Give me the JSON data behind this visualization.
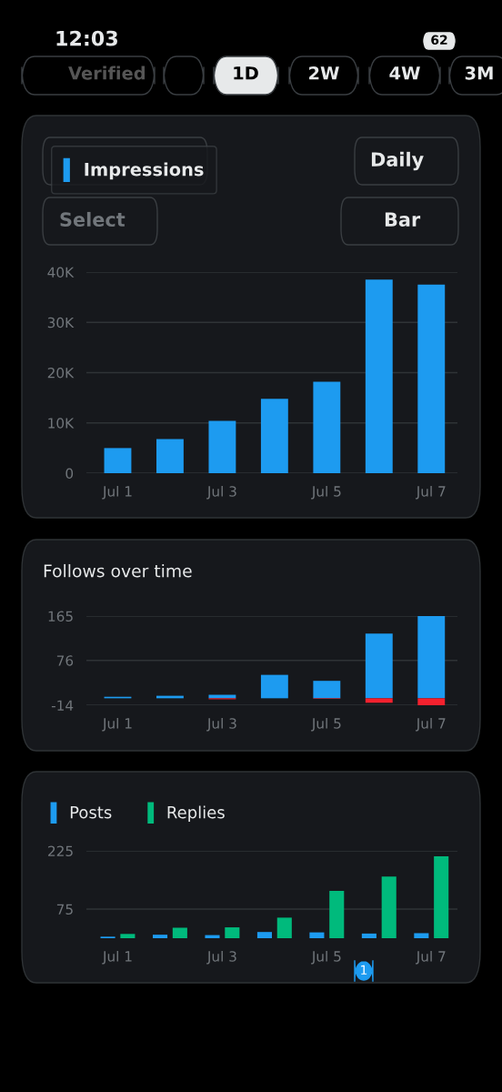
{
  "chart_data": [
    {
      "type": "bar",
      "categories": [
        "Jul 1",
        null,
        "Jul 3",
        null,
        "Jul 5",
        null,
        "Jul 7"
      ],
      "series": [
        {
          "name": "Impressions",
          "color": "#1d9bf0",
          "values": [
            5000,
            6800,
            10400,
            14800,
            18200,
            38500,
            37500
          ]
        }
      ],
      "ylim": [
        0,
        40000
      ],
      "yticks": [
        0,
        {
          "value": 10000,
          "label": "10K"
        },
        {
          "value": 20000,
          "label": "20K"
        },
        {
          "value": 30000,
          "label": "30K"
        },
        {
          "value": 40000,
          "label": "40K"
        }
      ],
      "grid": "y",
      "legend": "top left",
      "annotations": [
        "12:03",
        "62",
        "Verified",
        "1D",
        "2W",
        "4W",
        "3M",
        "Daily",
        "Select",
        "Bar"
      ]
    },
    {
      "type": "bar",
      "title": "Follows over time",
      "stacked": true,
      "categories": [
        "Jul 1",
        null,
        "Jul 3",
        null,
        "Jul 5",
        null,
        "Jul 7"
      ],
      "series": [
        {
          "color": "#1d9bf0",
          "values": [
            3,
            5,
            7,
            47,
            35,
            130,
            165
          ]
        },
        {
          "color": "#f4212e",
          "values": [
            0,
            0,
            -2,
            0,
            -1,
            -9,
            -14
          ]
        }
      ],
      "ylim": [
        -14,
        165
      ],
      "yticks": [
        -14,
        76,
        165
      ],
      "grid": "y"
    },
    {
      "type": "bar",
      "categories": [
        "Jul 1",
        null,
        "Jul 3",
        null,
        "Jul 5",
        null,
        "Jul 7"
      ],
      "series": [
        {
          "name": "Posts",
          "color": "#1d9bf0",
          "values": [
            4,
            9,
            8,
            16,
            15,
            12,
            13
          ]
        },
        {
          "name": "Replies",
          "color": "#00ba7c",
          "values": [
            11,
            27,
            28,
            53,
            122,
            159,
            211
          ]
        }
      ],
      "ylim": [
        0,
        225
      ],
      "yticks": [
        75,
        225
      ],
      "grid": "y",
      "legend": "top left",
      "annotations": [
        "1"
      ]
    }
  ]
}
